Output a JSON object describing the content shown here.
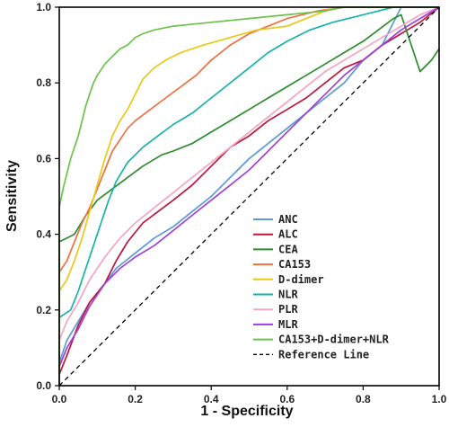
{
  "chart_data": {
    "type": "line",
    "title": "",
    "xlabel": "1 - Specificity",
    "ylabel": "Sensitivity",
    "xlim": [
      0,
      1
    ],
    "ylim": [
      0,
      1
    ],
    "x_ticks": [
      "0.0",
      "0.2",
      "0.4",
      "0.6",
      "0.8",
      "1.0"
    ],
    "y_ticks": [
      "0.0",
      "0.2",
      "0.4",
      "0.6",
      "0.8",
      "1.0"
    ],
    "grid": false,
    "legend_position": "bottom-right",
    "series": [
      {
        "name": "ANC",
        "color": "#5b9bd5",
        "points": [
          [
            0,
            0
          ],
          [
            0,
            0.06
          ],
          [
            0.02,
            0.12
          ],
          [
            0.05,
            0.17
          ],
          [
            0.08,
            0.22
          ],
          [
            0.12,
            0.27
          ],
          [
            0.15,
            0.31
          ],
          [
            0.2,
            0.35
          ],
          [
            0.25,
            0.39
          ],
          [
            0.3,
            0.42
          ],
          [
            0.35,
            0.46
          ],
          [
            0.4,
            0.5
          ],
          [
            0.45,
            0.55
          ],
          [
            0.5,
            0.6
          ],
          [
            0.55,
            0.64
          ],
          [
            0.6,
            0.68
          ],
          [
            0.65,
            0.72
          ],
          [
            0.7,
            0.76
          ],
          [
            0.75,
            0.8
          ],
          [
            0.8,
            0.86
          ],
          [
            0.85,
            0.9
          ],
          [
            0.88,
            0.96
          ],
          [
            0.9,
            1.0
          ],
          [
            1,
            1
          ]
        ]
      },
      {
        "name": "ALC",
        "color": "#c0143c",
        "points": [
          [
            0,
            0
          ],
          [
            0,
            0.03
          ],
          [
            0.02,
            0.08
          ],
          [
            0.05,
            0.16
          ],
          [
            0.08,
            0.22
          ],
          [
            0.12,
            0.27
          ],
          [
            0.15,
            0.33
          ],
          [
            0.18,
            0.38
          ],
          [
            0.22,
            0.43
          ],
          [
            0.26,
            0.46
          ],
          [
            0.3,
            0.49
          ],
          [
            0.35,
            0.53
          ],
          [
            0.4,
            0.58
          ],
          [
            0.45,
            0.63
          ],
          [
            0.5,
            0.66
          ],
          [
            0.55,
            0.7
          ],
          [
            0.6,
            0.73
          ],
          [
            0.65,
            0.76
          ],
          [
            0.7,
            0.8
          ],
          [
            0.75,
            0.84
          ],
          [
            0.8,
            0.86
          ],
          [
            0.85,
            0.9
          ],
          [
            0.9,
            0.93
          ],
          [
            0.95,
            0.96
          ],
          [
            1,
            1
          ]
        ]
      },
      {
        "name": "CEA",
        "color": "#2e8b2e",
        "points": [
          [
            0,
            0
          ],
          [
            0,
            0.38
          ],
          [
            0.04,
            0.4
          ],
          [
            0.07,
            0.45
          ],
          [
            0.1,
            0.49
          ],
          [
            0.14,
            0.52
          ],
          [
            0.18,
            0.55
          ],
          [
            0.22,
            0.58
          ],
          [
            0.27,
            0.61
          ],
          [
            0.3,
            0.62
          ],
          [
            0.35,
            0.64
          ],
          [
            0.4,
            0.67
          ],
          [
            0.45,
            0.7
          ],
          [
            0.5,
            0.73
          ],
          [
            0.55,
            0.76
          ],
          [
            0.6,
            0.79
          ],
          [
            0.65,
            0.82
          ],
          [
            0.7,
            0.85
          ],
          [
            0.75,
            0.88
          ],
          [
            0.8,
            0.91
          ],
          [
            0.84,
            0.94
          ],
          [
            0.88,
            0.97
          ],
          [
            0.9,
            0.98
          ],
          [
            0.95,
            0.83
          ],
          [
            0.98,
            0.86
          ],
          [
            1,
            0.89
          ]
        ]
      },
      {
        "name": "CA153",
        "color": "#f07040",
        "points": [
          [
            0,
            0
          ],
          [
            0,
            0.3
          ],
          [
            0.02,
            0.33
          ],
          [
            0.04,
            0.38
          ],
          [
            0.06,
            0.43
          ],
          [
            0.08,
            0.47
          ],
          [
            0.1,
            0.52
          ],
          [
            0.12,
            0.57
          ],
          [
            0.14,
            0.62
          ],
          [
            0.16,
            0.65
          ],
          [
            0.18,
            0.68
          ],
          [
            0.2,
            0.7
          ],
          [
            0.24,
            0.73
          ],
          [
            0.28,
            0.76
          ],
          [
            0.32,
            0.79
          ],
          [
            0.36,
            0.82
          ],
          [
            0.4,
            0.86
          ],
          [
            0.45,
            0.9
          ],
          [
            0.5,
            0.93
          ],
          [
            0.55,
            0.95
          ],
          [
            0.6,
            0.97
          ],
          [
            0.68,
            0.99
          ],
          [
            0.75,
            1.0
          ],
          [
            1,
            1
          ]
        ]
      },
      {
        "name": "D-dimer",
        "color": "#e8c818",
        "points": [
          [
            0,
            0
          ],
          [
            0,
            0.25
          ],
          [
            0.02,
            0.28
          ],
          [
            0.04,
            0.33
          ],
          [
            0.06,
            0.39
          ],
          [
            0.08,
            0.46
          ],
          [
            0.1,
            0.53
          ],
          [
            0.12,
            0.6
          ],
          [
            0.14,
            0.66
          ],
          [
            0.16,
            0.7
          ],
          [
            0.18,
            0.73
          ],
          [
            0.2,
            0.77
          ],
          [
            0.22,
            0.81
          ],
          [
            0.25,
            0.84
          ],
          [
            0.28,
            0.86
          ],
          [
            0.32,
            0.88
          ],
          [
            0.38,
            0.9
          ],
          [
            0.45,
            0.92
          ],
          [
            0.52,
            0.94
          ],
          [
            0.6,
            0.95
          ],
          [
            0.65,
            0.97
          ],
          [
            0.7,
            0.99
          ],
          [
            0.73,
            1.0
          ],
          [
            1,
            1
          ]
        ]
      },
      {
        "name": "NLR",
        "color": "#18b2a8",
        "points": [
          [
            0,
            0
          ],
          [
            0,
            0.18
          ],
          [
            0.03,
            0.2
          ],
          [
            0.05,
            0.25
          ],
          [
            0.07,
            0.31
          ],
          [
            0.09,
            0.37
          ],
          [
            0.11,
            0.43
          ],
          [
            0.13,
            0.49
          ],
          [
            0.15,
            0.54
          ],
          [
            0.18,
            0.59
          ],
          [
            0.22,
            0.63
          ],
          [
            0.26,
            0.66
          ],
          [
            0.3,
            0.69
          ],
          [
            0.35,
            0.72
          ],
          [
            0.4,
            0.76
          ],
          [
            0.45,
            0.8
          ],
          [
            0.5,
            0.84
          ],
          [
            0.55,
            0.88
          ],
          [
            0.6,
            0.91
          ],
          [
            0.66,
            0.94
          ],
          [
            0.72,
            0.96
          ],
          [
            0.8,
            0.98
          ],
          [
            0.88,
            1.0
          ],
          [
            1,
            1
          ]
        ]
      },
      {
        "name": "PLR",
        "color": "#f4a6c0",
        "points": [
          [
            0,
            0
          ],
          [
            0,
            0.12
          ],
          [
            0.02,
            0.17
          ],
          [
            0.05,
            0.22
          ],
          [
            0.08,
            0.28
          ],
          [
            0.12,
            0.34
          ],
          [
            0.16,
            0.39
          ],
          [
            0.2,
            0.43
          ],
          [
            0.25,
            0.47
          ],
          [
            0.3,
            0.51
          ],
          [
            0.35,
            0.55
          ],
          [
            0.4,
            0.59
          ],
          [
            0.45,
            0.63
          ],
          [
            0.5,
            0.67
          ],
          [
            0.55,
            0.71
          ],
          [
            0.6,
            0.75
          ],
          [
            0.65,
            0.79
          ],
          [
            0.7,
            0.83
          ],
          [
            0.75,
            0.86
          ],
          [
            0.8,
            0.89
          ],
          [
            0.85,
            0.92
          ],
          [
            0.9,
            0.95
          ],
          [
            0.95,
            0.98
          ],
          [
            1,
            1
          ]
        ]
      },
      {
        "name": "MLR",
        "color": "#a040d8",
        "points": [
          [
            0,
            0
          ],
          [
            0,
            0.05
          ],
          [
            0.02,
            0.1
          ],
          [
            0.05,
            0.15
          ],
          [
            0.08,
            0.21
          ],
          [
            0.12,
            0.27
          ],
          [
            0.16,
            0.31
          ],
          [
            0.2,
            0.34
          ],
          [
            0.25,
            0.37
          ],
          [
            0.3,
            0.41
          ],
          [
            0.35,
            0.45
          ],
          [
            0.4,
            0.49
          ],
          [
            0.45,
            0.53
          ],
          [
            0.5,
            0.57
          ],
          [
            0.55,
            0.62
          ],
          [
            0.6,
            0.67
          ],
          [
            0.65,
            0.72
          ],
          [
            0.7,
            0.77
          ],
          [
            0.75,
            0.82
          ],
          [
            0.8,
            0.86
          ],
          [
            0.85,
            0.9
          ],
          [
            0.9,
            0.94
          ],
          [
            0.95,
            0.97
          ],
          [
            1,
            1
          ]
        ]
      },
      {
        "name": "CA153+D-dimer+NLR",
        "color": "#6cc24a",
        "points": [
          [
            0,
            0
          ],
          [
            0,
            0.47
          ],
          [
            0.01,
            0.52
          ],
          [
            0.02,
            0.56
          ],
          [
            0.03,
            0.6
          ],
          [
            0.04,
            0.63
          ],
          [
            0.05,
            0.66
          ],
          [
            0.06,
            0.7
          ],
          [
            0.07,
            0.74
          ],
          [
            0.08,
            0.77
          ],
          [
            0.09,
            0.8
          ],
          [
            0.1,
            0.82
          ],
          [
            0.12,
            0.85
          ],
          [
            0.14,
            0.87
          ],
          [
            0.16,
            0.89
          ],
          [
            0.18,
            0.9
          ],
          [
            0.2,
            0.92
          ],
          [
            0.22,
            0.93
          ],
          [
            0.25,
            0.94
          ],
          [
            0.3,
            0.95
          ],
          [
            0.4,
            0.96
          ],
          [
            0.5,
            0.97
          ],
          [
            0.6,
            0.98
          ],
          [
            0.7,
            0.99
          ],
          [
            0.75,
            1.0
          ],
          [
            1,
            1
          ]
        ]
      },
      {
        "name": "Reference Line",
        "color": "#000000",
        "dashed": true,
        "points": [
          [
            0,
            0
          ],
          [
            1,
            1
          ]
        ]
      }
    ]
  }
}
